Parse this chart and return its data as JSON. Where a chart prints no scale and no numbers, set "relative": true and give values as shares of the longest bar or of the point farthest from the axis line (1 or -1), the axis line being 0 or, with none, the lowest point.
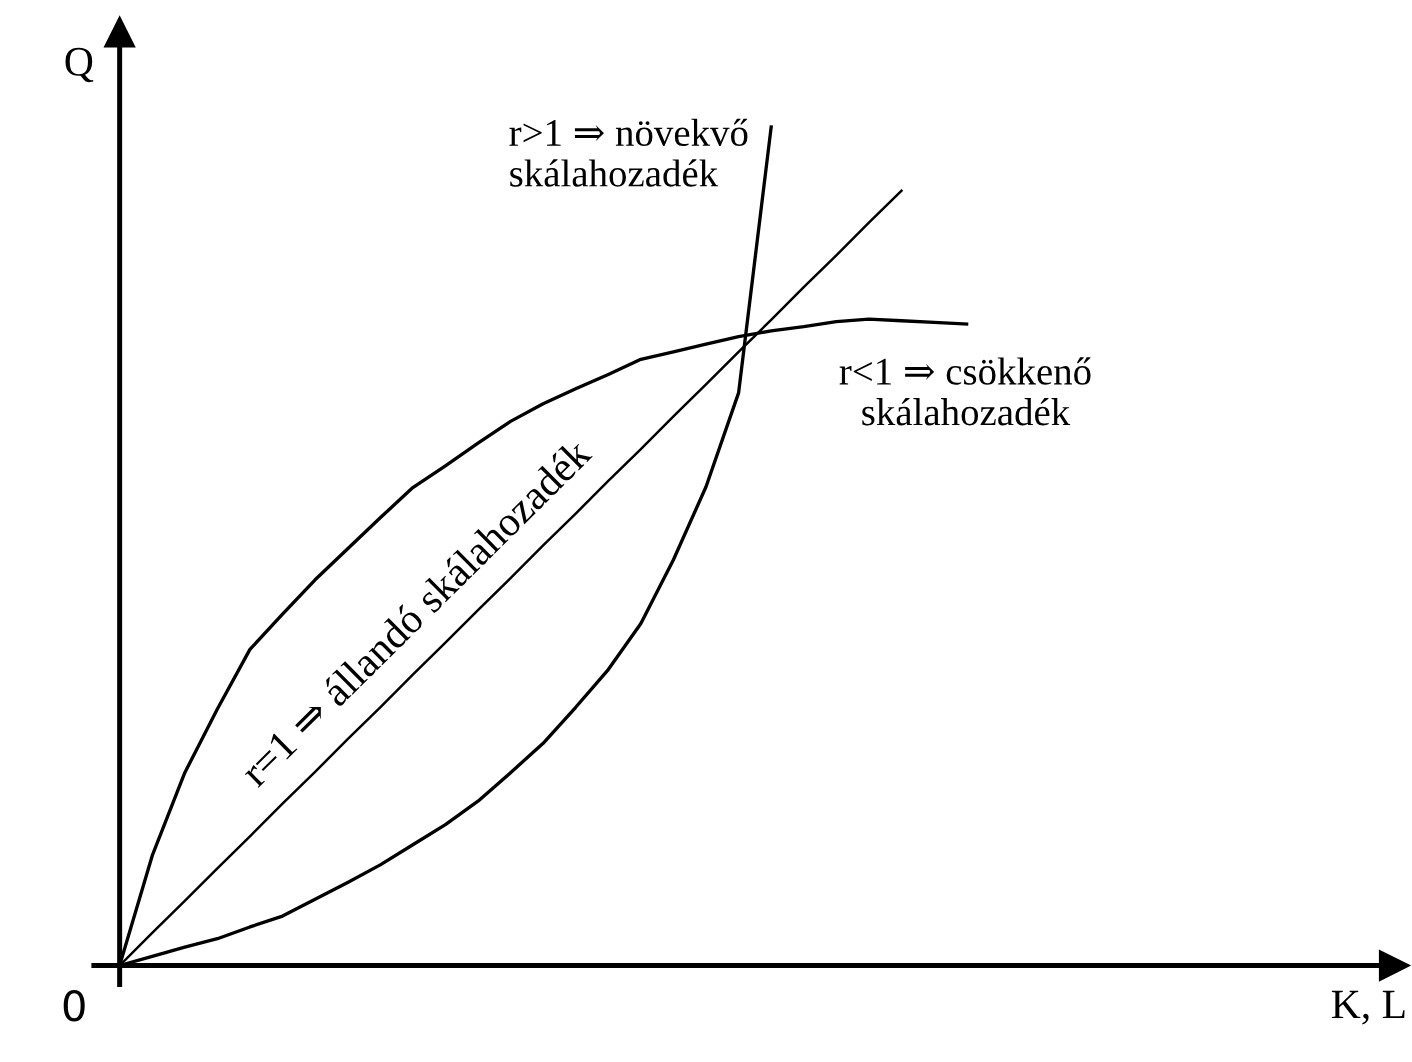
{
  "chart_data": {
    "type": "line",
    "relative": true,
    "ylabel": "Q",
    "annotations": [
      "0",
      "K, L"
    ],
    "marker": "none",
    "line_style": "solid",
    "categories": [
      null,
      null,
      null,
      null,
      null,
      null,
      null,
      null,
      null,
      null,
      null,
      null,
      null,
      null,
      null,
      null,
      null,
      null,
      null,
      null,
      null,
      null,
      null,
      null,
      null,
      null,
      null
    ],
    "series": [
      {
        "name": "r>1 ⇒ növekvő\nskálahozadék",
        "color": "#000000",
        "values": [
          0,
          0.011,
          0.022,
          0.032,
          0.046,
          0.059,
          0.079,
          0.099,
          0.12,
          0.144,
          0.168,
          0.196,
          0.23,
          0.265,
          0.308,
          0.353,
          0.408,
          0.484,
          0.571,
          0.683,
          1.0,
          null,
          null,
          null,
          null,
          null,
          null
        ]
      },
      {
        "name": "r<1 ⇒ csökkenő\nskálahozadék",
        "color": "#000000",
        "values": [
          0,
          0.131,
          0.23,
          0.306,
          0.377,
          0.419,
          0.46,
          0.497,
          0.534,
          0.57,
          0.596,
          0.623,
          0.649,
          0.67,
          0.688,
          0.705,
          0.723,
          0.732,
          0.741,
          0.75,
          0.757,
          0.762,
          0.768,
          0.771,
          0.769,
          0.767,
          0.765
        ]
      },
      {
        "name": "r=1 ⇒ állandó skálahozadék",
        "color": "#000000",
        "values": [
          0,
          0.039,
          0.077,
          0.116,
          0.154,
          0.193,
          0.231,
          0.27,
          0.308,
          0.347,
          0.385,
          0.424,
          0.462,
          0.501,
          0.539,
          0.578,
          0.616,
          0.655,
          0.693,
          0.732,
          0.77,
          0.809,
          0.847,
          0.886,
          0.924,
          null,
          null
        ]
      }
    ]
  }
}
